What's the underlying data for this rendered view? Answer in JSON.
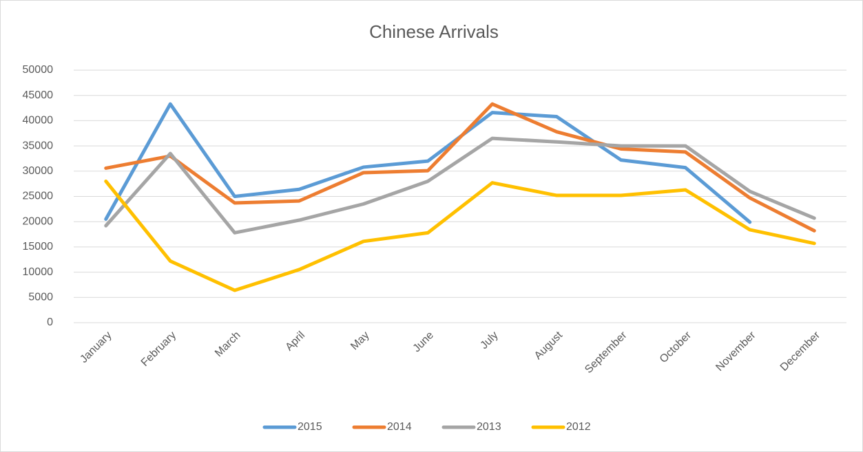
{
  "chart_data": {
    "type": "line",
    "title": "Chinese Arrivals",
    "categories": [
      "January",
      "February",
      "March",
      "April",
      "May",
      "June",
      "July",
      "August",
      "September",
      "October",
      "November",
      "December"
    ],
    "series": [
      {
        "name": "2015",
        "color": "#5b9bd5",
        "values": [
          20500,
          43300,
          25000,
          26400,
          30800,
          32000,
          41600,
          40800,
          32200,
          30700,
          19900,
          null
        ]
      },
      {
        "name": "2014",
        "color": "#ed7d31",
        "values": [
          30600,
          33000,
          23700,
          24100,
          29700,
          30100,
          43300,
          37800,
          34400,
          33800,
          24700,
          18200
        ]
      },
      {
        "name": "2013",
        "color": "#a5a5a5",
        "values": [
          19200,
          33500,
          17800,
          20300,
          23500,
          28000,
          36500,
          35800,
          35000,
          35000,
          26000,
          20700
        ]
      },
      {
        "name": "2012",
        "color": "#ffc000",
        "values": [
          28000,
          12200,
          6400,
          10500,
          16100,
          17800,
          27700,
          25200,
          25200,
          26300,
          18400,
          15700
        ]
      }
    ],
    "ylim": [
      0,
      50000
    ],
    "yticks": [
      0,
      5000,
      10000,
      15000,
      20000,
      25000,
      30000,
      35000,
      40000,
      45000,
      50000
    ],
    "grid": true,
    "legend": "bottom"
  }
}
